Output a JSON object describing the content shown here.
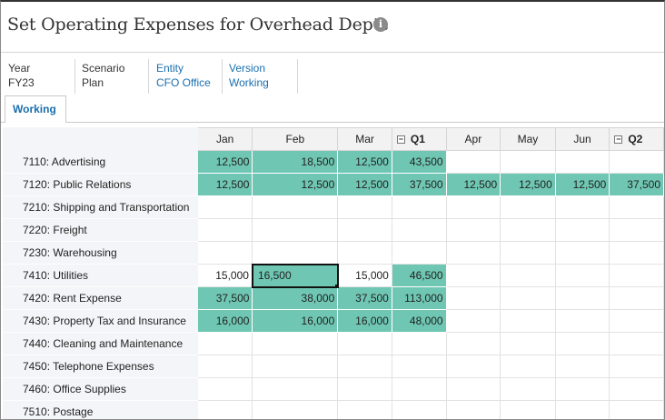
{
  "header": {
    "title": "Set Operating Expenses for Overhead Depts",
    "info_icon": "info-icon"
  },
  "pov": [
    {
      "label": "Year",
      "value": "FY23",
      "link": false
    },
    {
      "label": "Scenario",
      "value": "Plan",
      "link": false
    },
    {
      "label": "Entity",
      "value": "CFO Office",
      "link": true
    },
    {
      "label": "Version",
      "value": "Working",
      "link": true
    }
  ],
  "tabs": [
    {
      "label": "Working"
    }
  ],
  "grid": {
    "columns": [
      {
        "label": "Jan",
        "summary": false
      },
      {
        "label": "Feb",
        "summary": false
      },
      {
        "label": "Mar",
        "summary": false
      },
      {
        "label": "Q1",
        "summary": true
      },
      {
        "label": "Apr",
        "summary": false
      },
      {
        "label": "May",
        "summary": false
      },
      {
        "label": "Jun",
        "summary": false
      },
      {
        "label": "Q2",
        "summary": true
      }
    ],
    "collapse_symbol": "−",
    "rows": [
      {
        "label": "7110: Advertising",
        "cells": [
          "12,500",
          "18,500",
          "12,500",
          "43,500",
          "",
          "",
          "",
          ""
        ]
      },
      {
        "label": "7120: Public Relations",
        "cells": [
          "12,500",
          "12,500",
          "12,500",
          "37,500",
          "12,500",
          "12,500",
          "12,500",
          "37,500"
        ]
      },
      {
        "label": "7210: Shipping and Transportation",
        "cells": [
          "",
          "",
          "",
          "",
          "",
          "",
          "",
          ""
        ]
      },
      {
        "label": "7220: Freight",
        "cells": [
          "",
          "",
          "",
          "",
          "",
          "",
          "",
          ""
        ]
      },
      {
        "label": "7230: Warehousing",
        "cells": [
          "",
          "",
          "",
          "",
          "",
          "",
          "",
          ""
        ]
      },
      {
        "label": "7410: Utilities",
        "cells": [
          "15,000",
          "16,500",
          "15,000",
          "46,500",
          "",
          "",
          "",
          ""
        ]
      },
      {
        "label": "7420: Rent Expense",
        "cells": [
          "37,500",
          "38,000",
          "37,500",
          "113,000",
          "",
          "",
          "",
          ""
        ]
      },
      {
        "label": "7430: Property Tax and Insurance",
        "cells": [
          "16,000",
          "16,000",
          "16,000",
          "48,000",
          "",
          "",
          "",
          ""
        ]
      },
      {
        "label": "7440: Cleaning and Maintenance",
        "cells": [
          "",
          "",
          "",
          "",
          "",
          "",
          "",
          ""
        ]
      },
      {
        "label": "7450: Telephone Expenses",
        "cells": [
          "",
          "",
          "",
          "",
          "",
          "",
          "",
          ""
        ]
      },
      {
        "label": "7460: Office Supplies",
        "cells": [
          "",
          "",
          "",
          "",
          "",
          "",
          "",
          ""
        ]
      },
      {
        "label": "7510: Postage",
        "cells": [
          "",
          "",
          "",
          "",
          "",
          "",
          "",
          ""
        ]
      }
    ],
    "highlight_color": "#6fc7b3",
    "selected_cell": {
      "row": 5,
      "col": 1
    }
  }
}
